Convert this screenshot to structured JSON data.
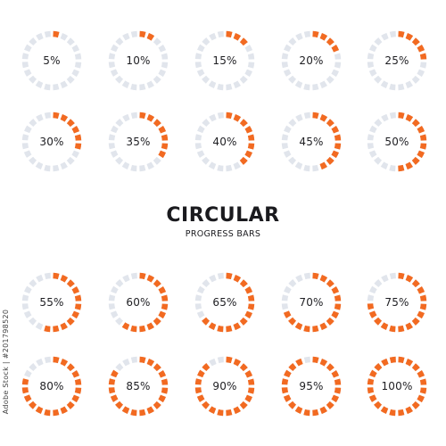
{
  "title": "CIRCULAR",
  "subtitle": "PROGRESS BARS",
  "stock_id": "Adobe Stock | #201798520",
  "colors": {
    "active": "#f26a21",
    "track": "#e1e5ec",
    "text": "#1e1e22"
  },
  "segments_per_ring": 20,
  "gauges": [
    {
      "label": "5%",
      "value": 5
    },
    {
      "label": "10%",
      "value": 10
    },
    {
      "label": "15%",
      "value": 15
    },
    {
      "label": "20%",
      "value": 20
    },
    {
      "label": "25%",
      "value": 25
    },
    {
      "label": "30%",
      "value": 30
    },
    {
      "label": "35%",
      "value": 35
    },
    {
      "label": "40%",
      "value": 40
    },
    {
      "label": "45%",
      "value": 45
    },
    {
      "label": "50%",
      "value": 50
    },
    {
      "label": "55%",
      "value": 55
    },
    {
      "label": "60%",
      "value": 60
    },
    {
      "label": "65%",
      "value": 65
    },
    {
      "label": "70%",
      "value": 70
    },
    {
      "label": "75%",
      "value": 75
    },
    {
      "label": "80%",
      "value": 80
    },
    {
      "label": "85%",
      "value": 85
    },
    {
      "label": "90%",
      "value": 90
    },
    {
      "label": "95%",
      "value": 95
    },
    {
      "label": "100%",
      "value": 100
    }
  ]
}
